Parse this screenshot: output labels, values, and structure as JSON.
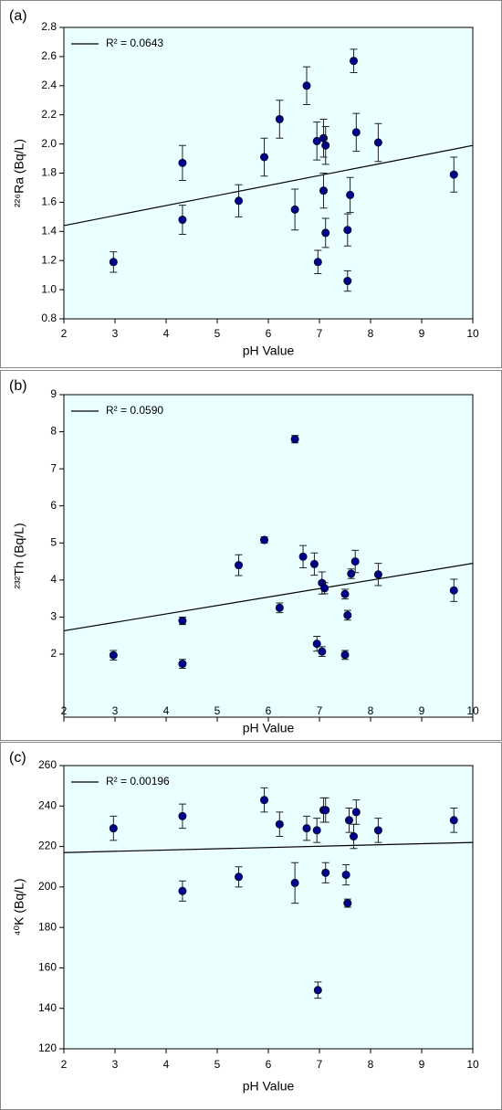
{
  "chart_data": [
    {
      "type": "scatter",
      "panel_label": "(a)",
      "x_label": "pH Value",
      "y_label": "²²⁶Ra (Bq/L)",
      "xlim": [
        2,
        10
      ],
      "xticks": [
        2,
        3,
        4,
        5,
        6,
        7,
        8,
        9,
        10
      ],
      "ylim": [
        0.8,
        2.8
      ],
      "yticks": [
        0.8,
        {
          "value": 1,
          "label": "1.0"
        },
        1.2,
        1.4,
        1.6,
        1.8,
        {
          "value": 2,
          "label": "2.0"
        },
        2.2,
        2.4,
        2.6,
        2.8
      ],
      "plot_background": "#eaffff",
      "points": {
        "color": "#00008b",
        "x": [
          2.97,
          4.32,
          4.32,
          5.42,
          5.92,
          6.22,
          6.52,
          6.75,
          6.95,
          6.97,
          7.08,
          7.12,
          7.08,
          7.12,
          7.55,
          7.55,
          7.6,
          7.67,
          7.72,
          8.15,
          9.63
        ],
        "y": [
          1.19,
          1.87,
          1.48,
          1.61,
          1.91,
          2.17,
          1.55,
          2.4,
          2.02,
          1.19,
          2.04,
          1.99,
          1.68,
          1.39,
          1.41,
          1.06,
          1.65,
          2.57,
          2.08,
          2.01,
          1.79
        ],
        "errors": [
          0.07,
          0.12,
          0.1,
          0.11,
          0.13,
          0.13,
          0.14,
          0.13,
          0.13,
          0.08,
          0.13,
          0.13,
          0.12,
          0.1,
          0.11,
          0.07,
          0.12,
          0.08,
          0.13,
          0.13,
          0.12
        ]
      },
      "fit_line": {
        "name": "R² = 0.0643",
        "color": "#000000",
        "x": [
          2,
          10
        ],
        "y": [
          1.44,
          1.99
        ]
      }
    },
    {
      "type": "scatter",
      "panel_label": "(b)",
      "x_label": "pH Value",
      "y_label": "²³²Th (Bq/L)",
      "xlim": [
        2,
        10
      ],
      "xticks": [
        2,
        3,
        4,
        5,
        6,
        7,
        8,
        9,
        10
      ],
      "ylim": [
        0.3,
        9
      ],
      "yticks": [
        2,
        3,
        4,
        5,
        6,
        7,
        8,
        9
      ],
      "plot_background": "#eaffff",
      "points": {
        "color": "#00008b",
        "x": [
          2.97,
          4.32,
          4.32,
          5.42,
          5.92,
          6.22,
          6.52,
          6.68,
          6.9,
          6.95,
          7.05,
          7.1,
          7.05,
          7.5,
          7.55,
          7.5,
          7.62,
          7.7,
          8.15,
          9.63
        ],
        "y": [
          1.97,
          2.9,
          1.74,
          4.4,
          5.08,
          3.25,
          7.8,
          4.63,
          4.43,
          2.28,
          3.92,
          3.78,
          2.07,
          3.62,
          3.05,
          1.98,
          4.17,
          4.5,
          4.15,
          3.72
        ],
        "errors": [
          0.13,
          0.1,
          0.12,
          0.28,
          0.08,
          0.13,
          0.1,
          0.3,
          0.3,
          0.2,
          0.3,
          0.15,
          0.13,
          0.13,
          0.13,
          0.12,
          0.13,
          0.3,
          0.3,
          0.3
        ]
      },
      "fit_line": {
        "name": "R² = 0.0590",
        "color": "#000000",
        "x": [
          2,
          10
        ],
        "y": [
          2.63,
          4.45
        ]
      }
    },
    {
      "type": "scatter",
      "panel_label": "(c)",
      "x_label": "pH Value",
      "y_label": "⁴⁰K (Bq/L)",
      "xlim": [
        2,
        10
      ],
      "xticks": [
        2,
        3,
        4,
        5,
        6,
        7,
        8,
        9,
        10
      ],
      "ylim": [
        120,
        260
      ],
      "yticks": [
        120,
        140,
        160,
        180,
        200,
        220,
        240,
        260
      ],
      "plot_background": "#eaffff",
      "points": {
        "color": "#00008b",
        "x": [
          2.97,
          4.32,
          4.32,
          5.42,
          5.92,
          6.22,
          6.52,
          6.75,
          6.95,
          6.97,
          7.08,
          7.12,
          7.12,
          7.52,
          7.55,
          7.58,
          7.67,
          7.72,
          8.15,
          9.63
        ],
        "y": [
          229,
          235,
          198,
          205,
          243,
          231,
          202,
          229,
          228,
          149,
          238,
          238,
          207,
          206,
          192,
          233,
          225,
          237,
          228,
          233
        ],
        "errors": [
          6,
          6,
          5,
          5,
          6,
          6,
          10,
          6,
          6,
          4,
          6,
          6,
          5,
          5,
          2,
          6,
          6,
          6,
          6,
          6
        ]
      },
      "fit_line": {
        "name": "R² = 0.00196",
        "color": "#000000",
        "x": [
          2,
          10
        ],
        "y": [
          217,
          222
        ]
      }
    }
  ]
}
